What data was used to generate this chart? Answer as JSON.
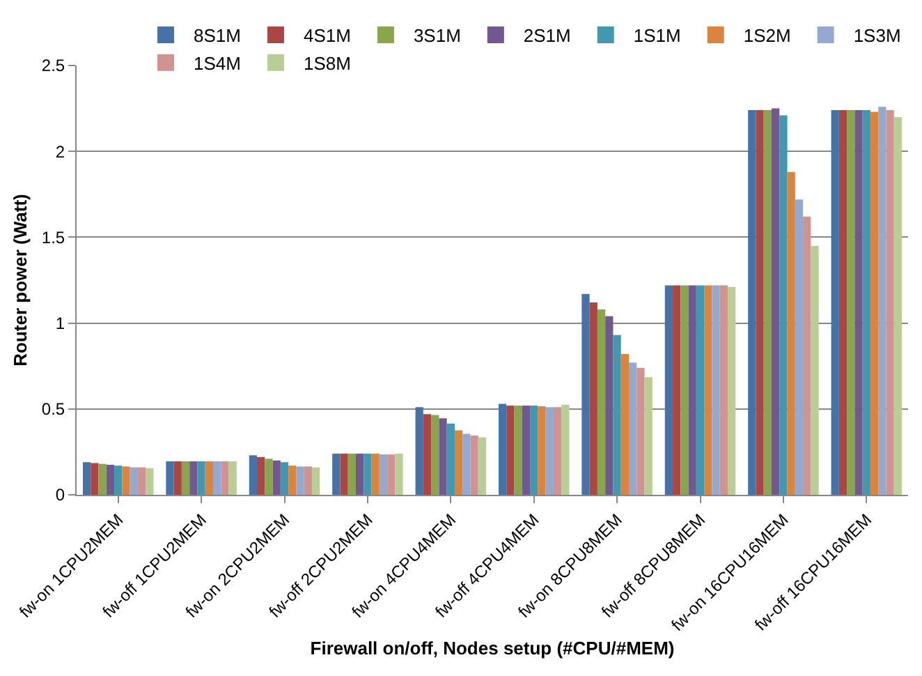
{
  "chart_data": {
    "type": "bar",
    "xlabel": "Firewall on/off, Nodes setup (#CPU/#MEM)",
    "ylabel": "Router power (Watt)",
    "categories": [
      "fw-on 1CPU2MEM",
      "fw-off 1CPU2MEM",
      "fw-on 2CPU2MEM",
      "fw-off 2CPU2MEM",
      "fw-on 4CPU4MEM",
      "fw-off 4CPU4MEM",
      "fw-on 8CPU8MEM",
      "fw-off 8CPU8MEM",
      "fw-on 16CPU16MEM",
      "fw-off 16CPU16MEM"
    ],
    "series": [
      {
        "name": "8S1M",
        "color": "#4572a7",
        "values": [
          0.19,
          0.195,
          0.23,
          0.24,
          0.51,
          0.53,
          1.17,
          1.22,
          2.24,
          2.24
        ]
      },
      {
        "name": "4S1M",
        "color": "#aa4643",
        "values": [
          0.185,
          0.195,
          0.22,
          0.24,
          0.47,
          0.52,
          1.12,
          1.22,
          2.24,
          2.24
        ]
      },
      {
        "name": "3S1M",
        "color": "#89a54e",
        "values": [
          0.18,
          0.195,
          0.21,
          0.24,
          0.465,
          0.52,
          1.08,
          1.22,
          2.24,
          2.24
        ]
      },
      {
        "name": "2S1M",
        "color": "#71588f",
        "values": [
          0.175,
          0.195,
          0.2,
          0.24,
          0.445,
          0.52,
          1.04,
          1.22,
          2.25,
          2.24
        ]
      },
      {
        "name": "1S1M",
        "color": "#4198af",
        "values": [
          0.17,
          0.195,
          0.19,
          0.24,
          0.415,
          0.52,
          0.93,
          1.22,
          2.21,
          2.24
        ]
      },
      {
        "name": "1S2M",
        "color": "#db843d",
        "values": [
          0.165,
          0.195,
          0.17,
          0.24,
          0.375,
          0.515,
          0.82,
          1.22,
          1.88,
          2.23
        ]
      },
      {
        "name": "1S3M",
        "color": "#93a9cf",
        "values": [
          0.16,
          0.195,
          0.165,
          0.235,
          0.355,
          0.51,
          0.77,
          1.22,
          1.72,
          2.26
        ]
      },
      {
        "name": "1S4M",
        "color": "#d19392",
        "values": [
          0.16,
          0.195,
          0.165,
          0.235,
          0.345,
          0.51,
          0.74,
          1.22,
          1.62,
          2.24
        ]
      },
      {
        "name": "1S8M",
        "color": "#b9cd96",
        "values": [
          0.155,
          0.195,
          0.16,
          0.24,
          0.335,
          0.525,
          0.685,
          1.21,
          1.45,
          2.2
        ]
      }
    ],
    "ylim": [
      0,
      2.5
    ],
    "yticks": [
      0,
      0.5,
      1,
      1.5,
      2,
      2.5
    ],
    "grid": "y",
    "legend": "top right"
  }
}
